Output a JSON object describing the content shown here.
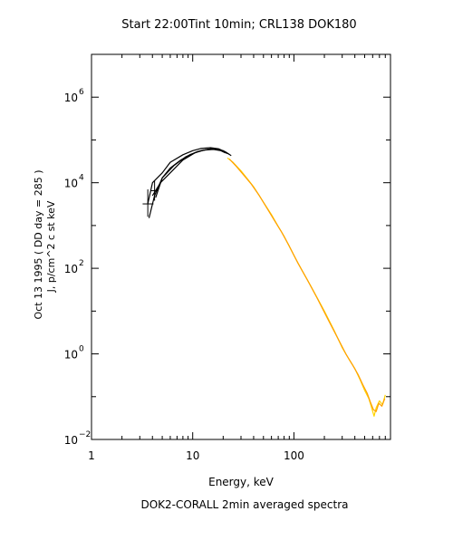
{
  "chart_data": {
    "type": "line",
    "title": "Start 22:00Tint 10min; CRL138 DOK180",
    "ylabel_line1": "Oct 13 1995 ( DD day = 285 )",
    "ylabel_line2": "J, p/cm^2 c st keV",
    "xlabel": "Energy, keV",
    "caption": "DOK2-CORALL 2min averaged spectra",
    "x_scale": "log",
    "y_scale": "log",
    "xlim": [
      1,
      900
    ],
    "ylim": [
      0.01,
      10000000
    ],
    "x_ticks": [
      {
        "value": 1,
        "label": "1"
      },
      {
        "value": 10,
        "label": "10"
      },
      {
        "value": 100,
        "label": "100"
      }
    ],
    "y_ticks": [
      {
        "value": 0.01,
        "base": "10",
        "exp": "−2"
      },
      {
        "value": 1,
        "base": "10",
        "exp": "0"
      },
      {
        "value": 100,
        "base": "10",
        "exp": "2"
      },
      {
        "value": 10000,
        "base": "10",
        "exp": "4"
      },
      {
        "value": 1000000,
        "base": "10",
        "exp": "6"
      }
    ],
    "series": [
      {
        "color": "#000000",
        "x": [
          3.6,
          4.0,
          5.0,
          6.0,
          8.0,
          10.0,
          12.0,
          15.0,
          18.0,
          21.0,
          24.0
        ],
        "y": [
          3200,
          10000,
          17000,
          30000,
          45000,
          56000,
          63000,
          66000,
          62000,
          53000,
          43000
        ]
      },
      {
        "color": "#000000",
        "x": [
          3.7,
          4.2,
          5.0,
          6.5,
          8.5,
          11.0,
          14.0,
          17.0,
          20.0,
          23.0
        ],
        "y": [
          1500,
          5000,
          13000,
          25000,
          40000,
          53000,
          60000,
          61000,
          56000,
          46000
        ]
      },
      {
        "color": "#000000",
        "x": [
          4.0,
          4.8,
          6.0,
          8.0,
          10.5,
          13.0,
          16.0,
          19.0,
          22.0
        ],
        "y": [
          5000,
          10000,
          17000,
          34000,
          50000,
          58000,
          60000,
          56000,
          48000
        ]
      },
      {
        "color": "#000000",
        "x": [
          4.3,
          5.0,
          6.0,
          7.5,
          9.5,
          12.0,
          15.0,
          18.0,
          21.0
        ],
        "y": [
          4500,
          13000,
          22000,
          33000,
          46000,
          56000,
          62000,
          60000,
          50000
        ]
      },
      {
        "color": "#ffd400",
        "x": [
          22,
          25,
          30,
          35,
          40,
          50,
          60,
          70,
          80,
          100,
          120,
          150,
          200,
          250,
          300,
          350,
          400,
          450,
          500,
          550,
          580,
          620,
          650,
          700,
          750,
          800
        ],
        "y": [
          38000,
          30000,
          19000,
          12000,
          8000,
          3500,
          1800,
          950,
          560,
          200,
          90,
          35,
          10,
          3.5,
          1.4,
          0.75,
          0.45,
          0.25,
          0.14,
          0.09,
          0.06,
          0.035,
          0.055,
          0.08,
          0.065,
          0.11
        ]
      },
      {
        "color": "#ffa000",
        "x": [
          23,
          27,
          32,
          38,
          45,
          55,
          65,
          75,
          90,
          110,
          135,
          170,
          220,
          280,
          330,
          380,
          430,
          480,
          530,
          570,
          610,
          650,
          690,
          740,
          790
        ],
        "y": [
          36000,
          24000,
          15000,
          9200,
          5200,
          2400,
          1250,
          720,
          330,
          130,
          55,
          20,
          6,
          2,
          0.95,
          0.55,
          0.33,
          0.19,
          0.12,
          0.075,
          0.05,
          0.045,
          0.07,
          0.06,
          0.09
        ]
      }
    ],
    "error_bars": [
      {
        "x": 3.6,
        "y": 3200,
        "xerr": [
          3.2,
          4.1
        ],
        "yerr": [
          1600,
          7000
        ]
      },
      {
        "x": 4.2,
        "y": 6500,
        "xerr": [
          3.9,
          4.5
        ],
        "yerr": [
          3800,
          11000
        ]
      }
    ]
  }
}
